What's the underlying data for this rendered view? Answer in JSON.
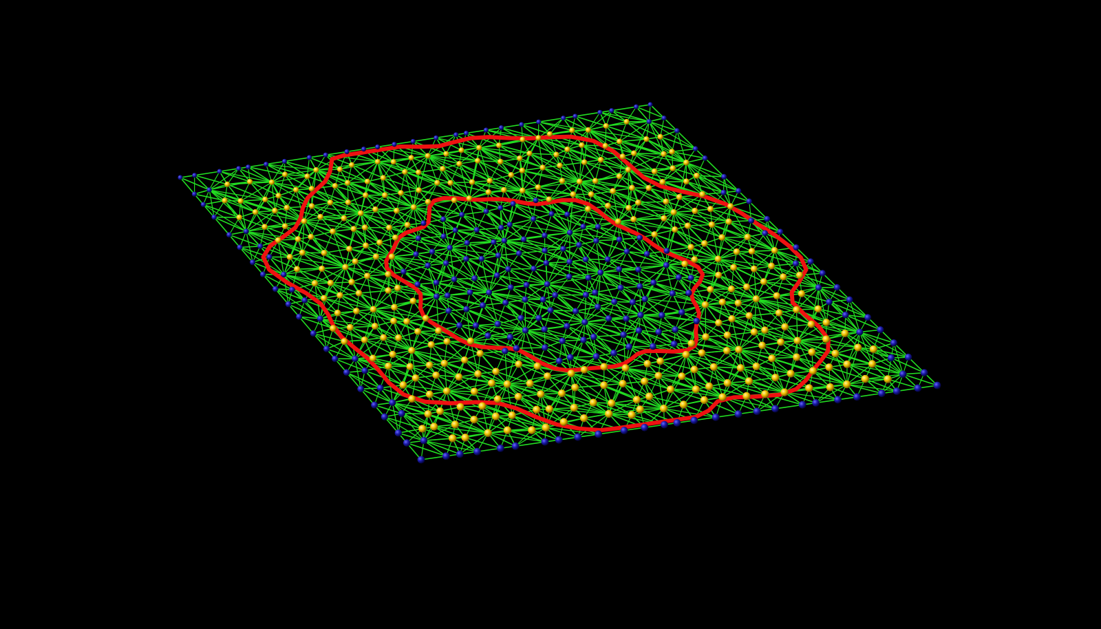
{
  "scene": {
    "background": "#000000",
    "edge_color": "#22dd22",
    "loop_color": "#ee1111",
    "inner_node_color": "#1a1aa8",
    "band_node_color": "#f2c200"
  }
}
